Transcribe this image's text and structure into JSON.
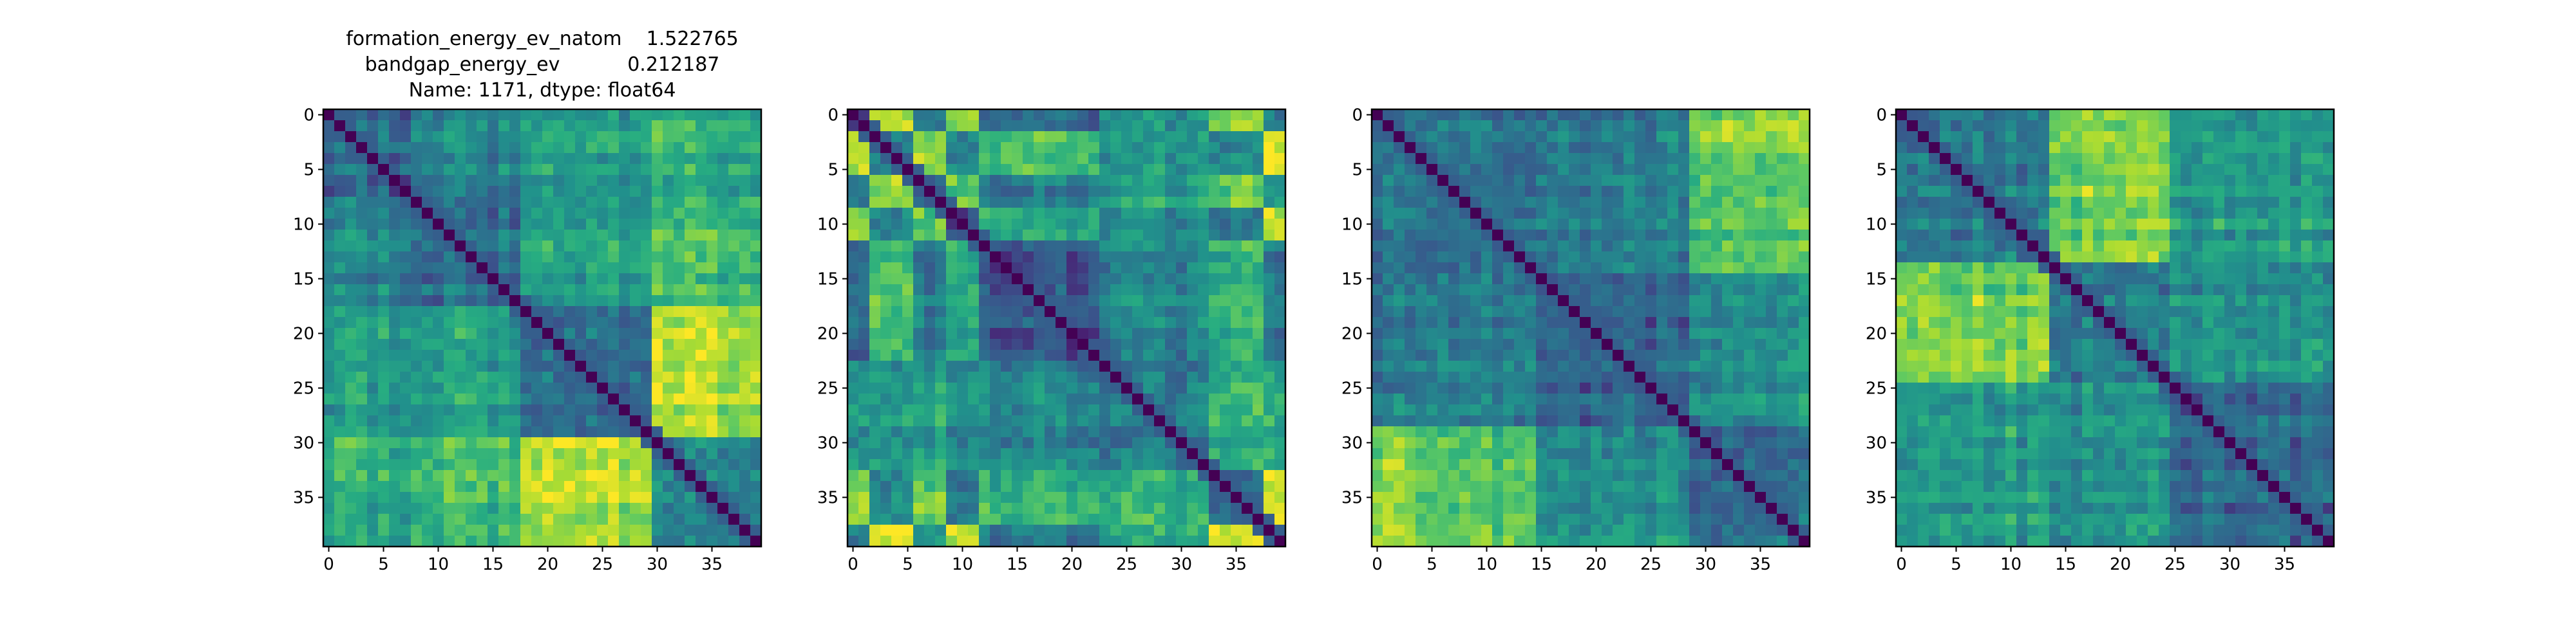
{
  "figure": {
    "title_lines": [
      "formation_energy_ev_natom    1.522765",
      "bandgap_energy_ev           0.212187",
      "Name: 1171, dtype: float64"
    ]
  },
  "chart_data": [
    {
      "type": "heatmap",
      "title_lines": [
        "formation_energy_ev_natom    1.522765",
        "bandgap_energy_ev           0.212187",
        "Name: 1171, dtype: float64"
      ],
      "n": 40,
      "colormap": "viridis",
      "value_range": [
        0,
        1
      ],
      "diagonal_value": 0,
      "blocks": [
        0,
        8,
        18,
        30,
        40
      ],
      "block_similarity": [
        [
          0.35,
          0.45,
          0.55,
          0.62
        ],
        [
          0.45,
          0.35,
          0.55,
          0.68
        ],
        [
          0.55,
          0.55,
          0.33,
          0.88
        ],
        [
          0.62,
          0.68,
          0.88,
          0.45
        ]
      ],
      "xticks": [
        "0",
        "5",
        "10",
        "15",
        "20",
        "25",
        "30",
        "35"
      ],
      "yticks": [
        "0",
        "5",
        "10",
        "15",
        "20",
        "25",
        "30",
        "35"
      ]
    },
    {
      "type": "heatmap",
      "title_lines": [],
      "n": 40,
      "colormap": "viridis",
      "value_range": [
        0,
        1
      ],
      "diagonal_value": 0,
      "blocks": [
        0,
        2,
        6,
        9,
        12,
        23,
        33,
        38,
        40
      ],
      "block_similarity": [
        [
          0.3,
          0.9,
          0.4,
          0.88,
          0.4,
          0.55,
          0.88,
          0.45
        ],
        [
          0.9,
          0.4,
          0.8,
          0.45,
          0.7,
          0.5,
          0.45,
          0.92
        ],
        [
          0.4,
          0.8,
          0.3,
          0.75,
          0.4,
          0.52,
          0.75,
          0.45
        ],
        [
          0.88,
          0.45,
          0.75,
          0.3,
          0.65,
          0.5,
          0.4,
          0.9
        ],
        [
          0.4,
          0.7,
          0.4,
          0.65,
          0.3,
          0.45,
          0.65,
          0.4
        ],
        [
          0.55,
          0.5,
          0.52,
          0.5,
          0.45,
          0.4,
          0.62,
          0.55
        ],
        [
          0.88,
          0.45,
          0.75,
          0.4,
          0.65,
          0.62,
          0.3,
          0.9
        ],
        [
          0.45,
          0.92,
          0.45,
          0.9,
          0.4,
          0.55,
          0.9,
          0.35
        ]
      ],
      "xticks": [
        "0",
        "5",
        "10",
        "15",
        "20",
        "25",
        "30",
        "35"
      ],
      "yticks": [
        "0",
        "5",
        "10",
        "15",
        "20",
        "25",
        "30",
        "35"
      ]
    },
    {
      "type": "heatmap",
      "title_lines": [],
      "n": 40,
      "colormap": "viridis",
      "value_range": [
        0,
        1
      ],
      "diagonal_value": 0,
      "blocks": [
        0,
        4,
        15,
        29,
        40
      ],
      "block_similarity": [
        [
          0.35,
          0.4,
          0.4,
          0.82
        ],
        [
          0.4,
          0.4,
          0.45,
          0.75
        ],
        [
          0.4,
          0.45,
          0.35,
          0.5
        ],
        [
          0.82,
          0.75,
          0.5,
          0.35
        ]
      ],
      "xticks": [
        "0",
        "5",
        "10",
        "15",
        "20",
        "25",
        "30",
        "35"
      ],
      "yticks": [
        "0",
        "5",
        "10",
        "15",
        "20",
        "25",
        "30",
        "35"
      ]
    },
    {
      "type": "heatmap",
      "title_lines": [],
      "n": 40,
      "colormap": "viridis",
      "value_range": [
        0,
        1
      ],
      "diagonal_value": 0,
      "blocks": [
        0,
        4,
        14,
        25,
        40
      ],
      "block_similarity": [
        [
          0.35,
          0.4,
          0.8,
          0.52
        ],
        [
          0.4,
          0.4,
          0.78,
          0.55
        ],
        [
          0.8,
          0.78,
          0.4,
          0.5
        ],
        [
          0.52,
          0.55,
          0.5,
          0.35
        ]
      ],
      "xticks": [
        "0",
        "5",
        "10",
        "15",
        "20",
        "25",
        "30",
        "35"
      ],
      "yticks": [
        "0",
        "5",
        "10",
        "15",
        "20",
        "25",
        "30",
        "35"
      ]
    }
  ]
}
